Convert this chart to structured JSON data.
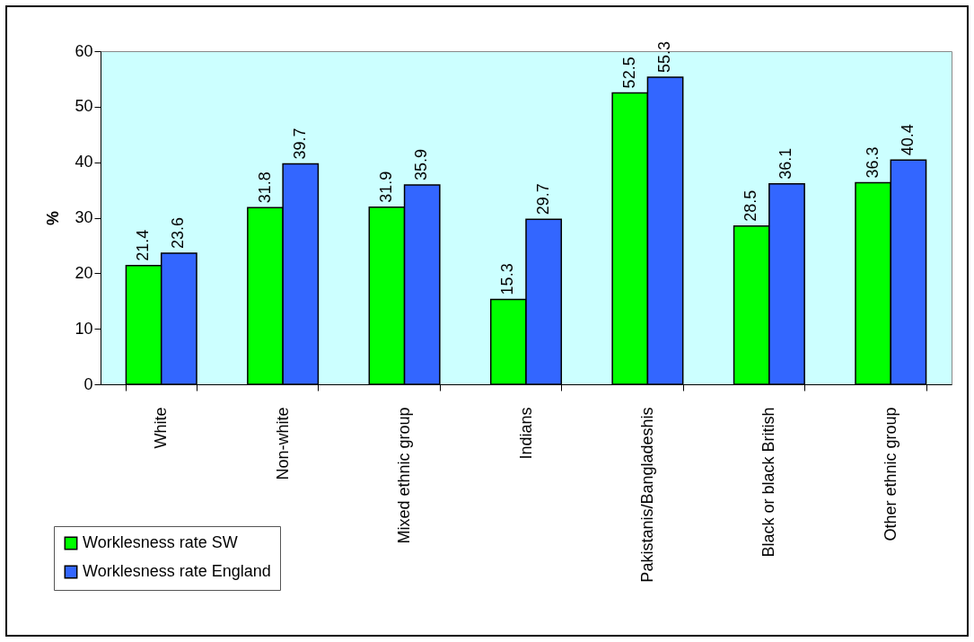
{
  "chart_data": {
    "type": "bar",
    "ylabel": "%",
    "categories": [
      "White",
      "Non-white",
      "Mixed ethnic group",
      "Indians",
      "Pakistanis/Bangladeshis",
      "Black or black British",
      "Other ethnic group"
    ],
    "series": [
      {
        "name": "Worklesness rate SW",
        "color": "#00ff00",
        "values": [
          21.4,
          31.8,
          31.9,
          15.3,
          52.5,
          28.5,
          36.3
        ]
      },
      {
        "name": "Worklesness rate England",
        "color": "#3366ff",
        "values": [
          23.6,
          39.7,
          35.9,
          29.7,
          55.3,
          36.1,
          40.4
        ]
      }
    ],
    "ylim": [
      0,
      60
    ],
    "yticks": [
      0,
      10,
      20,
      30,
      40,
      50,
      60
    ],
    "data_labels": true,
    "legend": "bottom left"
  }
}
